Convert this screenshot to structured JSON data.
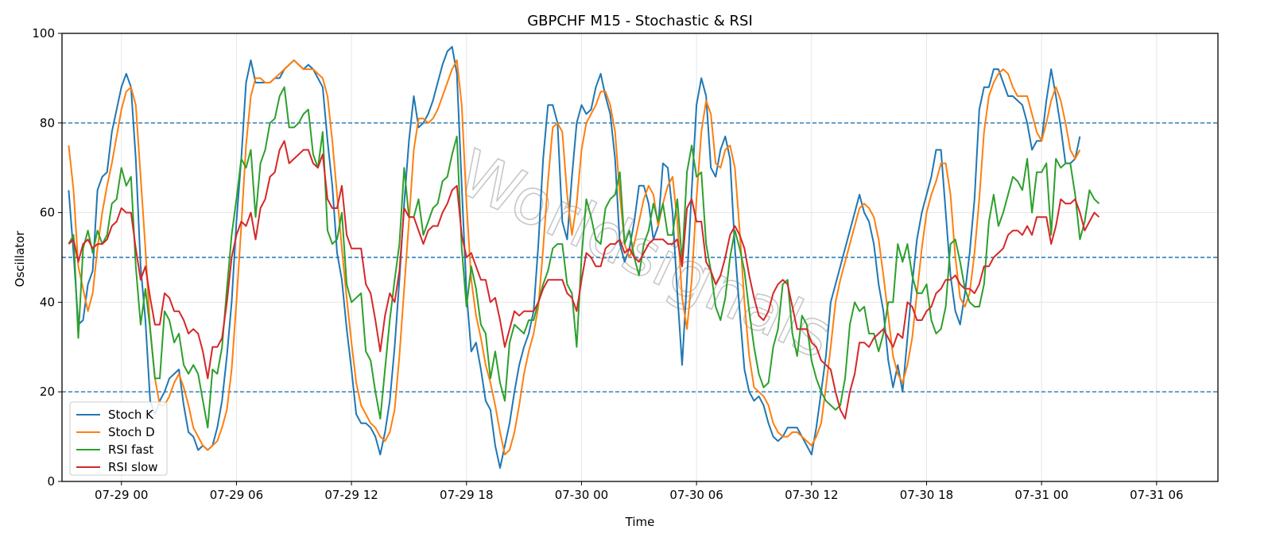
{
  "chart_data": {
    "type": "line",
    "title": "GBPCHF M15 - Stochastic & RSI",
    "xlabel": "Time",
    "ylabel": "Oscillator",
    "ylim": [
      0,
      100
    ],
    "yticks": [
      0,
      20,
      40,
      60,
      80,
      100
    ],
    "xlim_hours": [
      -3.1,
      57.2
    ],
    "xticks": [
      {
        "h": 0,
        "label": "07-29 00"
      },
      {
        "h": 6,
        "label": "07-29 06"
      },
      {
        "h": 12,
        "label": "07-29 12"
      },
      {
        "h": 18,
        "label": "07-29 18"
      },
      {
        "h": 24,
        "label": "07-30 00"
      },
      {
        "h": 30,
        "label": "07-30 06"
      },
      {
        "h": 36,
        "label": "07-30 12"
      },
      {
        "h": 42,
        "label": "07-30 18"
      },
      {
        "h": 48,
        "label": "07-31 00"
      },
      {
        "h": 54,
        "label": "07-31 06"
      }
    ],
    "x_start": "07-28 21:15",
    "x_step_minutes": 15,
    "reference_lines": [
      80,
      50,
      20
    ],
    "reference_color": "#1f77b4",
    "grid": true,
    "legend_position": "lower-left",
    "watermark": "Worldsignals",
    "series": [
      {
        "name": "Stoch K",
        "color": "#1f77b4",
        "values": [
          65,
          51,
          35,
          36,
          44,
          47,
          65,
          68,
          69,
          78,
          83,
          88,
          91,
          88,
          72,
          48,
          36,
          18,
          15,
          18,
          20,
          23,
          24,
          25,
          17,
          11,
          10,
          7,
          8,
          7,
          8,
          12,
          18,
          28,
          40,
          58,
          72,
          89,
          94,
          89,
          89,
          89,
          89,
          90,
          90,
          92,
          93,
          94,
          93,
          92,
          93,
          92,
          90,
          88,
          76,
          66,
          51,
          45,
          34,
          25,
          15,
          13,
          13,
          12,
          10,
          6,
          11,
          18,
          30,
          45,
          62,
          76,
          86,
          79,
          80,
          82,
          85,
          89,
          93,
          96,
          97,
          91,
          66,
          42,
          29,
          31,
          25,
          18,
          16,
          8,
          3,
          8,
          13,
          20,
          26,
          30,
          33,
          38,
          53,
          72,
          84,
          84,
          80,
          58,
          54,
          68,
          80,
          84,
          82,
          83,
          88,
          91,
          86,
          82,
          72,
          53,
          49,
          52,
          58,
          66,
          66,
          62,
          54,
          57,
          71,
          70,
          60,
          42,
          26,
          45,
          65,
          84,
          90,
          86,
          70,
          68,
          74,
          77,
          72,
          52,
          38,
          25,
          20,
          18,
          19,
          17,
          13,
          10,
          9,
          10,
          12,
          12,
          12,
          10,
          8,
          6,
          12,
          20,
          28,
          40,
          44,
          48,
          52,
          56,
          60,
          64,
          60,
          58,
          53,
          44,
          38,
          27,
          21,
          26,
          20,
          32,
          44,
          54,
          60,
          64,
          68,
          74,
          74,
          60,
          46,
          38,
          35,
          42,
          51,
          63,
          83,
          88,
          88,
          92,
          92,
          89,
          86,
          86,
          85,
          84,
          80,
          74,
          76,
          76,
          85,
          92,
          86,
          79,
          71,
          71,
          72,
          77
        ]
      },
      {
        "name": "Stoch D",
        "color": "#ff7f0e",
        "values": [
          75,
          65,
          48,
          43,
          38,
          42,
          52,
          60,
          66,
          71,
          77,
          83,
          87,
          88,
          84,
          68,
          52,
          34,
          23,
          17,
          17,
          19,
          22,
          24,
          21,
          17,
          12,
          10,
          8,
          7,
          8,
          9,
          12,
          16,
          25,
          40,
          57,
          75,
          86,
          90,
          90,
          89,
          89,
          90,
          91,
          92,
          93,
          94,
          93,
          92,
          92,
          92,
          91,
          90,
          86,
          76,
          64,
          52,
          41,
          31,
          22,
          17,
          15,
          13,
          12,
          10,
          9,
          11,
          16,
          28,
          43,
          58,
          74,
          81,
          81,
          80,
          81,
          83,
          86,
          89,
          92,
          94,
          84,
          62,
          45,
          37,
          32,
          26,
          22,
          17,
          11,
          6,
          7,
          11,
          17,
          24,
          29,
          33,
          39,
          52,
          67,
          79,
          80,
          78,
          64,
          55,
          62,
          74,
          80,
          82,
          84,
          87,
          87,
          84,
          78,
          64,
          53,
          50,
          53,
          58,
          63,
          66,
          64,
          57,
          62,
          66,
          68,
          58,
          41,
          34,
          45,
          63,
          78,
          85,
          82,
          71,
          70,
          74,
          75,
          70,
          56,
          40,
          28,
          21,
          20,
          19,
          17,
          13,
          11,
          10,
          10,
          11,
          11,
          10,
          9,
          8,
          10,
          13,
          21,
          30,
          40,
          45,
          49,
          53,
          57,
          61,
          62,
          61,
          59,
          54,
          46,
          37,
          28,
          24,
          22,
          26,
          32,
          42,
          52,
          60,
          64,
          67,
          71,
          71,
          64,
          50,
          41,
          39,
          42,
          51,
          63,
          78,
          86,
          89,
          91,
          92,
          91,
          88,
          86,
          86,
          86,
          82,
          78,
          76,
          80,
          85,
          88,
          85,
          80,
          74,
          72,
          74
        ]
      },
      {
        "name": "RSI fast",
        "color": "#2ca02c",
        "values": [
          53,
          55,
          32,
          52,
          56,
          51,
          56,
          53,
          55,
          62,
          63,
          70,
          66,
          68,
          48,
          35,
          43,
          34,
          23,
          23,
          38,
          36,
          31,
          33,
          26,
          24,
          26,
          24,
          18,
          12,
          25,
          24,
          30,
          43,
          55,
          63,
          72,
          70,
          74,
          59,
          71,
          74,
          80,
          81,
          86,
          88,
          79,
          79,
          80,
          82,
          83,
          73,
          70,
          78,
          56,
          53,
          54,
          60,
          44,
          40,
          41,
          42,
          29,
          27,
          20,
          14,
          25,
          36,
          45,
          53,
          70,
          59,
          59,
          63,
          55,
          58,
          61,
          62,
          67,
          68,
          73,
          77,
          52,
          39,
          48,
          43,
          35,
          33,
          23,
          29,
          22,
          18,
          31,
          35,
          34,
          33,
          36,
          36,
          40,
          44,
          47,
          52,
          53,
          53,
          44,
          42,
          30,
          50,
          63,
          59,
          54,
          53,
          61,
          63,
          64,
          69,
          53,
          56,
          50,
          46,
          53,
          56,
          62,
          58,
          62,
          55,
          55,
          63,
          49,
          69,
          75,
          68,
          69,
          53,
          47,
          39,
          36,
          41,
          50,
          56,
          52,
          47,
          38,
          30,
          24,
          21,
          22,
          30,
          34,
          44,
          45,
          33,
          28,
          37,
          35,
          27,
          23,
          20,
          18,
          17,
          16,
          17,
          23,
          35,
          40,
          38,
          39,
          33,
          33,
          29,
          33,
          40,
          40,
          53,
          49,
          53,
          46,
          42,
          42,
          44,
          36,
          33,
          34,
          39,
          53,
          54,
          49,
          43,
          40,
          39,
          39,
          44,
          58,
          64,
          57,
          60,
          64,
          68,
          67,
          65,
          72,
          60,
          69,
          69,
          71,
          55,
          72,
          70,
          71,
          71,
          64,
          54,
          58,
          65,
          63,
          62
        ]
      },
      {
        "name": "RSI slow",
        "color": "#d62728",
        "values": [
          53,
          54,
          49,
          53,
          54,
          52,
          53,
          53,
          54,
          57,
          58,
          61,
          60,
          60,
          52,
          45,
          48,
          41,
          35,
          35,
          42,
          41,
          38,
          38,
          36,
          33,
          34,
          33,
          29,
          23,
          30,
          30,
          32,
          40,
          50,
          55,
          58,
          57,
          60,
          54,
          61,
          63,
          68,
          69,
          74,
          76,
          71,
          72,
          73,
          74,
          74,
          71,
          70,
          73,
          63,
          61,
          61,
          66,
          55,
          52,
          52,
          52,
          44,
          42,
          36,
          29,
          37,
          42,
          40,
          47,
          61,
          59,
          59,
          56,
          53,
          56,
          57,
          57,
          60,
          62,
          65,
          66,
          55,
          50,
          51,
          48,
          45,
          45,
          40,
          41,
          36,
          30,
          34,
          38,
          37,
          38,
          38,
          38,
          40,
          43,
          45,
          45,
          45,
          45,
          42,
          41,
          38,
          45,
          51,
          50,
          48,
          48,
          52,
          53,
          53,
          54,
          51,
          52,
          50,
          49,
          51,
          53,
          54,
          54,
          54,
          53,
          53,
          54,
          48,
          61,
          63,
          58,
          58,
          49,
          47,
          44,
          46,
          50,
          55,
          57,
          55,
          52,
          46,
          41,
          37,
          36,
          38,
          42,
          44,
          45,
          44,
          39,
          34,
          34,
          34,
          31,
          30,
          27,
          26,
          25,
          20,
          16,
          14,
          20,
          24,
          31,
          31,
          30,
          32,
          33,
          34,
          32,
          30,
          33,
          32,
          40,
          39,
          36,
          36,
          38,
          39,
          42,
          43,
          45,
          45,
          46,
          44,
          43,
          43,
          42,
          44,
          48,
          48,
          50,
          51,
          52,
          55,
          56,
          56,
          55,
          57,
          55,
          59,
          59,
          59,
          53,
          57,
          63,
          62,
          62,
          63,
          60,
          56,
          58,
          60,
          59
        ]
      }
    ]
  }
}
